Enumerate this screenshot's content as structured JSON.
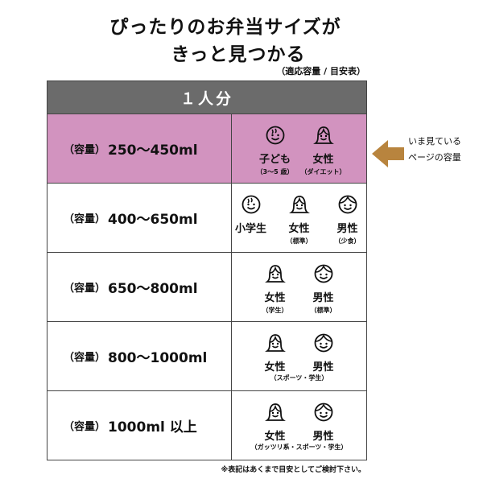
{
  "title": {
    "line1": "ぴったりのお弁当サイズが",
    "line2": "きっと見つかる",
    "subtitle": "（適応容量 / 目安表）"
  },
  "table": {
    "header": "１人分",
    "capacity_prefix": "（容量）",
    "rows": [
      {
        "capacity": "250〜450ml",
        "highlighted": true,
        "people": [
          {
            "icon": "child-face-icon",
            "label": "子ども",
            "note": "（3〜5 歳）"
          },
          {
            "icon": "woman-face-icon",
            "label": "女性",
            "note": "（ダイエット）"
          }
        ]
      },
      {
        "capacity": "400〜650ml",
        "people": [
          {
            "icon": "child-face-icon",
            "label": "小学生",
            "note": ""
          },
          {
            "icon": "woman-face-icon",
            "label": "女性",
            "note": "（標準）"
          },
          {
            "icon": "man-face-icon",
            "label": "男性",
            "note": "（少食）"
          }
        ]
      },
      {
        "capacity": "650〜800ml",
        "people": [
          {
            "icon": "woman-face-icon",
            "label": "女性",
            "note": "（学生）"
          },
          {
            "icon": "man-face-icon",
            "label": "男性",
            "note": "（標準）"
          }
        ]
      },
      {
        "capacity": "800〜1000ml",
        "shared_note": "（スポーツ・学生）",
        "people": [
          {
            "icon": "woman-face-icon",
            "label": "女性"
          },
          {
            "icon": "man-face-icon",
            "label": "男性"
          }
        ]
      },
      {
        "capacity": "1000ml 以上",
        "shared_note": "（ガッツリ系・スポーツ・学生）",
        "people": [
          {
            "icon": "woman-face-icon",
            "label": "女性"
          },
          {
            "icon": "man-face-icon",
            "label": "男性"
          }
        ]
      }
    ]
  },
  "indicator": {
    "line1": "いま見ている",
    "line2": "ページの容量",
    "color": "#b8843e"
  },
  "colors": {
    "header": "#6b6b6b",
    "highlight": "#d293bf"
  },
  "footnote": "※表記はあくまで目安としてご検討下さい。"
}
